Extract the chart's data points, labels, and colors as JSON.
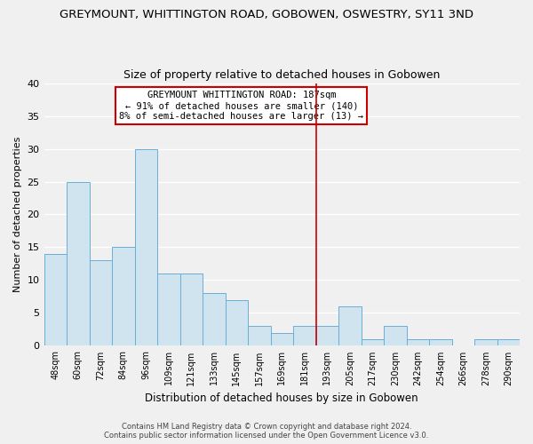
{
  "title": "GREYMOUNT, WHITTINGTON ROAD, GOBOWEN, OSWESTRY, SY11 3ND",
  "subtitle": "Size of property relative to detached houses in Gobowen",
  "xlabel": "Distribution of detached houses by size in Gobowen",
  "ylabel": "Number of detached properties",
  "bin_labels": [
    "48sqm",
    "60sqm",
    "72sqm",
    "84sqm",
    "96sqm",
    "109sqm",
    "121sqm",
    "133sqm",
    "145sqm",
    "157sqm",
    "169sqm",
    "181sqm",
    "193sqm",
    "205sqm",
    "217sqm",
    "230sqm",
    "242sqm",
    "254sqm",
    "266sqm",
    "278sqm",
    "290sqm"
  ],
  "bar_heights": [
    14,
    25,
    13,
    15,
    30,
    11,
    11,
    8,
    7,
    3,
    2,
    3,
    3,
    6,
    1,
    3,
    1,
    1,
    0,
    1,
    1
  ],
  "bar_color": "#d0e4f0",
  "bar_edge_color": "#6aaed6",
  "vline_x": 11.5,
  "vline_color": "#cc0000",
  "ylim": [
    0,
    40
  ],
  "yticks": [
    0,
    5,
    10,
    15,
    20,
    25,
    30,
    35,
    40
  ],
  "annotation_title": "GREYMOUNT WHITTINGTON ROAD: 187sqm",
  "annotation_line1": "← 91% of detached houses are smaller (140)",
  "annotation_line2": "8% of semi-detached houses are larger (13) →",
  "footer_line1": "Contains HM Land Registry data © Crown copyright and database right 2024.",
  "footer_line2": "Contains public sector information licensed under the Open Government Licence v3.0.",
  "background_color": "#f0f0f0",
  "grid_color": "#ffffff",
  "title_fontsize": 9.5,
  "subtitle_fontsize": 9
}
